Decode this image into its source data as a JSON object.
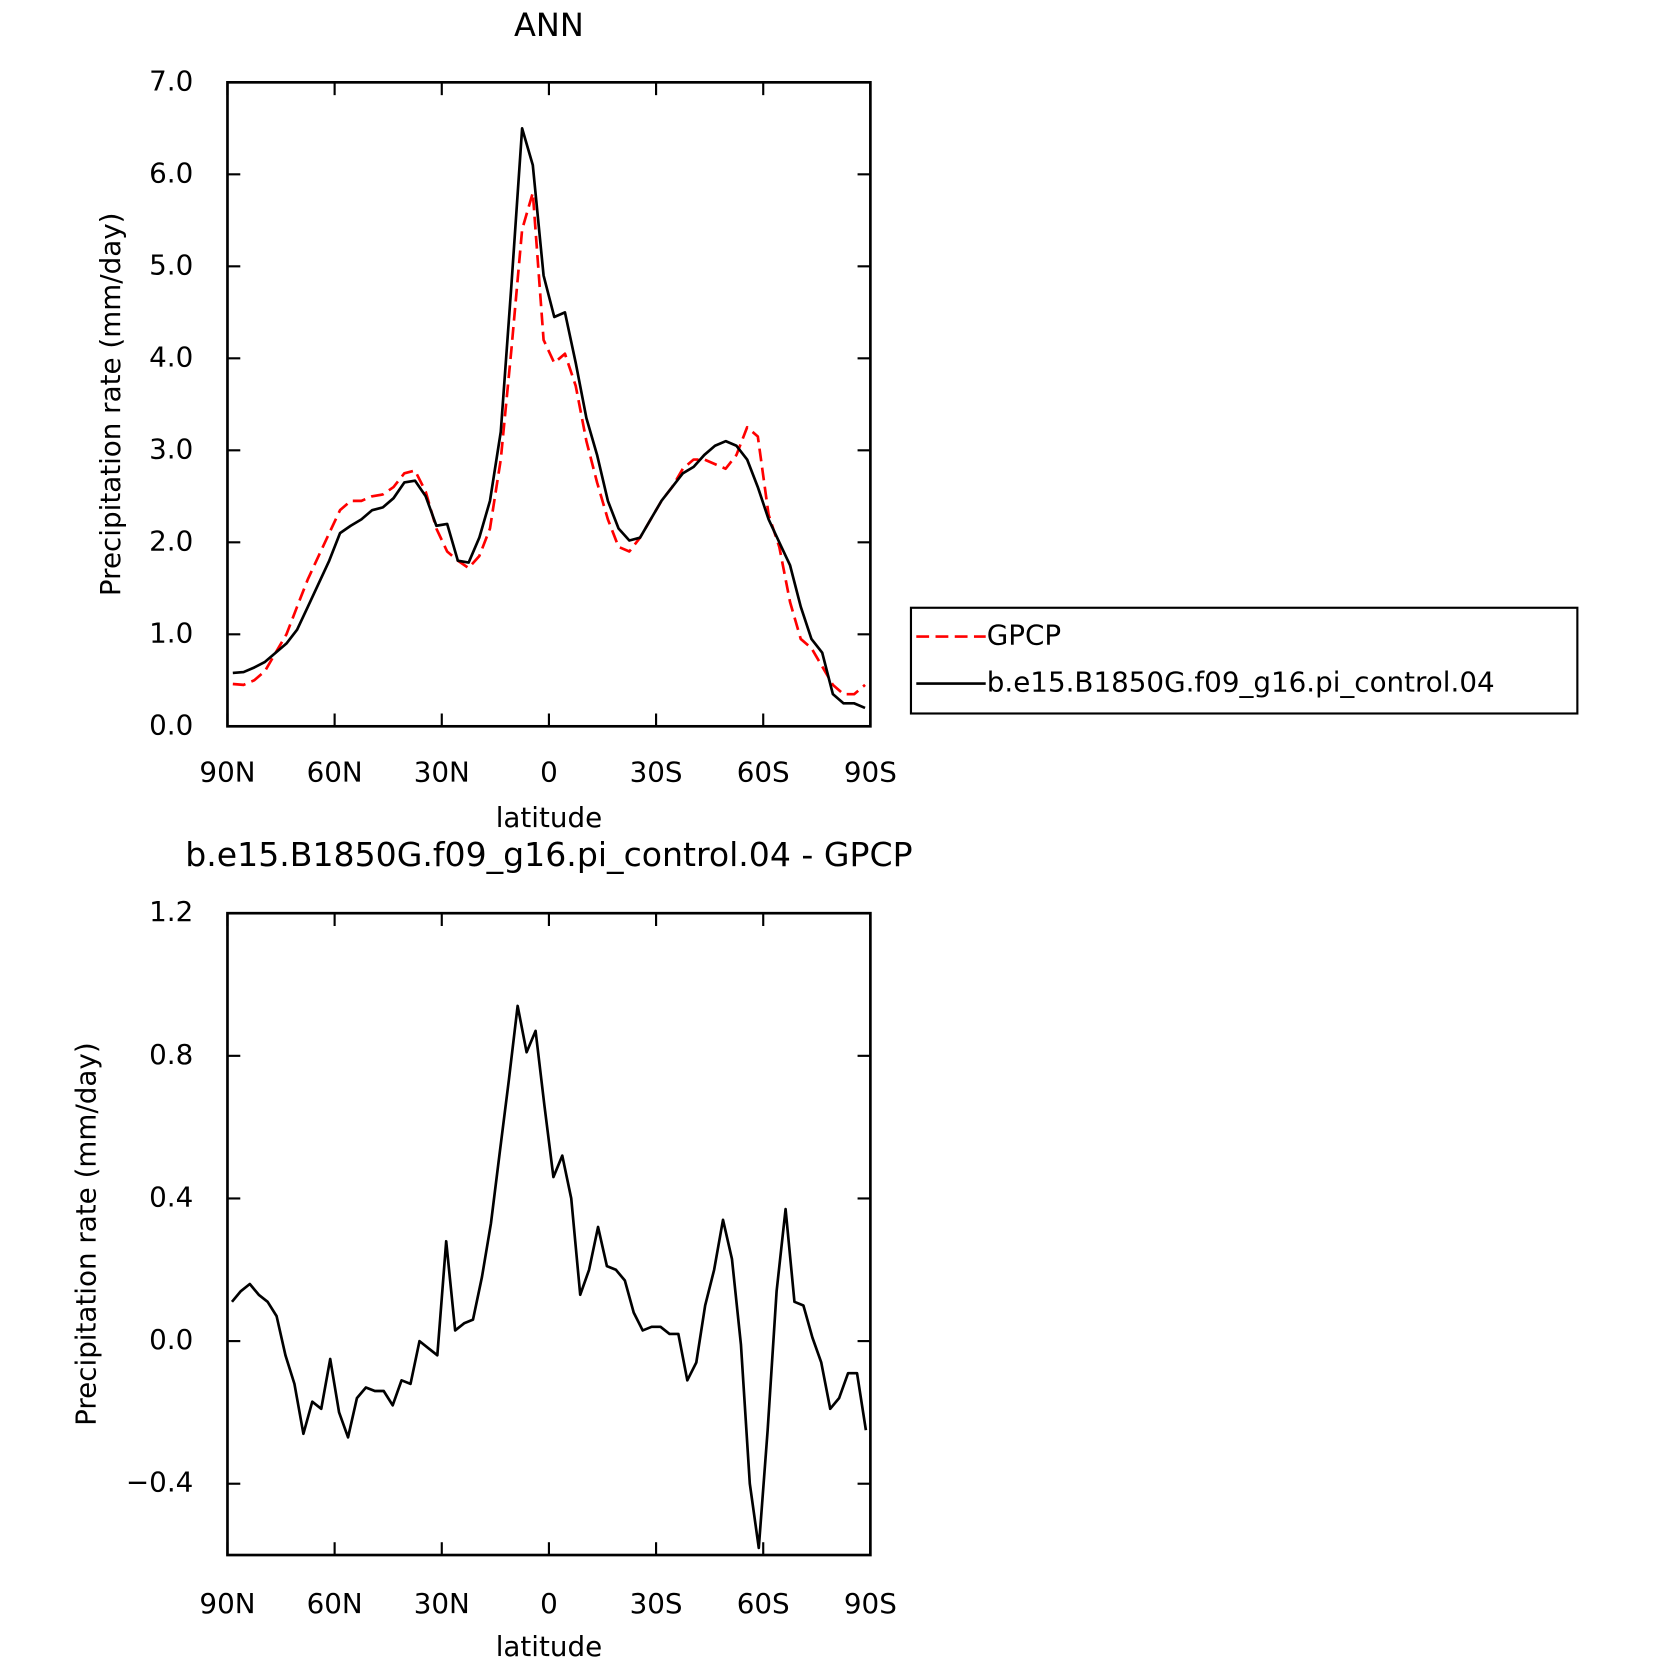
{
  "chart_data": [
    {
      "type": "line",
      "title": "ANN",
      "xlabel": "latitude",
      "ylabel": "Precipitation rate (mm/day)",
      "x": [
        88.5,
        85.5,
        82.5,
        79.5,
        76.5,
        73.5,
        70.5,
        67.5,
        64.5,
        61.5,
        58.5,
        55.5,
        52.5,
        49.5,
        46.5,
        43.5,
        40.5,
        37.5,
        34.5,
        31.5,
        28.5,
        25.5,
        22.5,
        19.5,
        16.5,
        13.5,
        10.5,
        7.5,
        4.5,
        1.5,
        -1.5,
        -4.5,
        -7.5,
        -10.5,
        -13.5,
        -16.5,
        -19.5,
        -22.5,
        -25.5,
        -28.5,
        -31.5,
        -34.5,
        -37.5,
        -40.5,
        -43.5,
        -46.5,
        -49.5,
        -52.5,
        -55.5,
        -58.5,
        -61.5,
        -64.5,
        -67.5,
        -70.5,
        -73.5,
        -76.5,
        -79.5,
        -82.5,
        -85.5,
        -88.5
      ],
      "series": [
        {
          "name": "GPCP",
          "color": "#ff0000",
          "line_style": "dashed",
          "values": [
            0.46,
            0.45,
            0.5,
            0.6,
            0.8,
            1.0,
            1.3,
            1.6,
            1.85,
            2.1,
            2.35,
            2.45,
            2.45,
            2.5,
            2.52,
            2.6,
            2.75,
            2.78,
            2.55,
            2.15,
            1.9,
            1.8,
            1.72,
            1.85,
            2.15,
            2.9,
            4.1,
            5.4,
            5.8,
            4.2,
            3.95,
            4.05,
            3.7,
            3.1,
            2.65,
            2.25,
            1.95,
            1.9,
            2.05,
            2.25,
            2.45,
            2.6,
            2.8,
            2.9,
            2.9,
            2.85,
            2.8,
            2.95,
            3.25,
            3.15,
            2.3,
            1.95,
            1.35,
            0.95,
            0.85,
            0.65,
            0.45,
            0.35,
            0.35,
            0.45
          ]
        },
        {
          "name": "b.e15.B1850G.f09_g16.pi_control.04",
          "color": "#000000",
          "line_style": "solid",
          "values": [
            0.58,
            0.59,
            0.64,
            0.7,
            0.8,
            0.9,
            1.05,
            1.3,
            1.55,
            1.8,
            2.1,
            2.18,
            2.25,
            2.35,
            2.38,
            2.48,
            2.65,
            2.67,
            2.5,
            2.18,
            2.2,
            1.8,
            1.78,
            2.05,
            2.45,
            3.2,
            4.8,
            6.5,
            6.1,
            4.9,
            4.45,
            4.5,
            3.95,
            3.35,
            2.95,
            2.45,
            2.15,
            2.02,
            2.05,
            2.25,
            2.45,
            2.6,
            2.75,
            2.82,
            2.95,
            3.05,
            3.1,
            3.05,
            2.9,
            2.6,
            2.25,
            2.0,
            1.75,
            1.3,
            0.95,
            0.8,
            0.35,
            0.25,
            0.25,
            0.2
          ]
        }
      ],
      "xlim": [
        90,
        -90
      ],
      "xticks": [
        {
          "value": 90,
          "label": "90N"
        },
        {
          "value": 60,
          "label": "60N"
        },
        {
          "value": 30,
          "label": "30N"
        },
        0,
        {
          "value": -30,
          "label": "30S"
        },
        {
          "value": -60,
          "label": "60S"
        },
        {
          "value": -90,
          "label": "90S"
        }
      ],
      "ylim": [
        0,
        7
      ],
      "yticks": [
        {
          "value": 0,
          "label": "0.0"
        },
        {
          "value": 1,
          "label": "1.0"
        },
        {
          "value": 2,
          "label": "2.0"
        },
        {
          "value": 3,
          "label": "3.0"
        },
        {
          "value": 4,
          "label": "4.0"
        },
        {
          "value": 5,
          "label": "5.0"
        },
        {
          "value": 6,
          "label": "6.0"
        },
        {
          "value": 7,
          "label": "7.0"
        }
      ],
      "legend": "right"
    },
    {
      "type": "line",
      "title": "b.e15.B1850G.f09_g16.pi_control.04 - GPCP",
      "xlabel": "latitude",
      "ylabel": "Precipitation rate (mm/day)",
      "x": [
        88.75,
        86.25,
        83.75,
        81.25,
        78.75,
        76.25,
        73.75,
        71.25,
        68.75,
        66.25,
        63.75,
        61.25,
        58.75,
        56.25,
        53.75,
        51.25,
        48.75,
        46.25,
        43.75,
        41.25,
        38.75,
        36.25,
        33.75,
        31.25,
        28.75,
        26.25,
        23.75,
        21.25,
        18.75,
        16.25,
        13.75,
        11.25,
        8.75,
        6.25,
        3.75,
        1.25,
        -1.25,
        -3.75,
        -6.25,
        -8.75,
        -11.25,
        -13.75,
        -16.25,
        -18.75,
        -21.25,
        -23.75,
        -26.25,
        -28.75,
        -31.25,
        -33.75,
        -36.25,
        -38.75,
        -41.25,
        -43.75,
        -46.25,
        -48.75,
        -51.25,
        -53.75,
        -56.25,
        -58.75,
        -61.25,
        -63.75,
        -66.25,
        -68.75,
        -71.25,
        -73.75,
        -76.25,
        -78.75,
        -81.25,
        -83.75,
        -86.25,
        -88.75
      ],
      "values": [
        0.11,
        0.14,
        0.16,
        0.13,
        0.11,
        0.07,
        -0.04,
        -0.12,
        -0.26,
        -0.17,
        -0.19,
        -0.05,
        -0.2,
        -0.27,
        -0.16,
        -0.13,
        -0.14,
        -0.14,
        -0.18,
        -0.11,
        -0.12,
        0.0,
        -0.02,
        -0.04,
        0.28,
        0.03,
        0.05,
        0.06,
        0.18,
        0.33,
        0.53,
        0.73,
        0.94,
        0.81,
        0.87,
        0.66,
        0.46,
        0.52,
        0.4,
        0.13,
        0.2,
        0.32,
        0.21,
        0.2,
        0.17,
        0.08,
        0.03,
        0.04,
        0.04,
        0.02,
        0.02,
        -0.11,
        -0.06,
        0.1,
        0.2,
        0.34,
        0.23,
        -0.01,
        -0.4,
        -0.58,
        -0.25,
        0.14,
        0.37,
        0.11,
        0.1,
        0.01,
        -0.06,
        -0.19,
        -0.16,
        -0.09,
        -0.09,
        -0.25
      ],
      "color": "#000000",
      "xlim": [
        90,
        -90
      ],
      "xticks": [
        {
          "value": 90,
          "label": "90N"
        },
        {
          "value": 60,
          "label": "60N"
        },
        {
          "value": 30,
          "label": "30N"
        },
        0,
        {
          "value": -30,
          "label": "30S"
        },
        {
          "value": -60,
          "label": "60S"
        },
        {
          "value": -90,
          "label": "90S"
        }
      ],
      "ylim": [
        -0.6,
        1.2
      ],
      "yticks": [
        {
          "value": -0.4,
          "label": "−0.4"
        },
        {
          "value": 0,
          "label": "0.0"
        },
        0.4,
        0.8,
        1.2
      ]
    }
  ]
}
